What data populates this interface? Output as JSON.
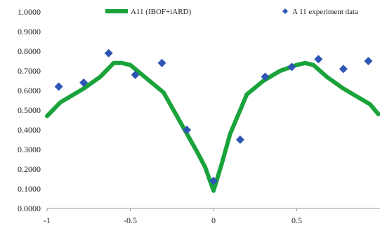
{
  "chart_data": {
    "type": "line",
    "xlim": [
      -1,
      1
    ],
    "ylim": [
      0,
      1
    ],
    "x_ticks": [
      "-1",
      "-0.5",
      "0",
      "0.5"
    ],
    "x_tick_values": [
      -1,
      -0.5,
      0,
      0.5
    ],
    "y_ticks": [
      "0.0000",
      "0.1000",
      "0.2000",
      "0.3000",
      "0.4000",
      "0.5000",
      "0.6000",
      "0.7000",
      "0.8000",
      "0.9000",
      "1.0000"
    ],
    "y_tick_values": [
      0,
      0.1,
      0.2,
      0.3,
      0.4,
      0.5,
      0.6,
      0.7,
      0.8,
      0.9,
      1.0
    ],
    "grid": false,
    "legend_position": "top",
    "series": [
      {
        "name": "A11 (IBOF+iARD)",
        "type": "line",
        "color": "#1aa33a",
        "x": [
          -1.0,
          -0.92,
          -0.78,
          -0.68,
          -0.6,
          -0.55,
          -0.5,
          -0.4,
          -0.3,
          -0.2,
          -0.1,
          -0.05,
          0.0,
          0.05,
          0.1,
          0.2,
          0.3,
          0.4,
          0.5,
          0.55,
          0.6,
          0.68,
          0.78,
          0.88,
          0.94,
          0.99
        ],
        "values": [
          0.47,
          0.54,
          0.61,
          0.67,
          0.74,
          0.74,
          0.73,
          0.66,
          0.59,
          0.44,
          0.29,
          0.21,
          0.09,
          0.23,
          0.38,
          0.58,
          0.65,
          0.7,
          0.73,
          0.74,
          0.73,
          0.67,
          0.61,
          0.56,
          0.53,
          0.48
        ]
      },
      {
        "name": "A 11 experiment data",
        "type": "scatter",
        "color": "#2f56b4",
        "x": [
          -0.93,
          -0.78,
          -0.63,
          -0.47,
          -0.31,
          -0.16,
          0.0,
          0.16,
          0.31,
          0.47,
          0.63,
          0.78,
          0.93
        ],
        "values": [
          0.62,
          0.64,
          0.79,
          0.68,
          0.74,
          0.4,
          0.14,
          0.35,
          0.67,
          0.72,
          0.76,
          0.71,
          0.75
        ]
      }
    ]
  }
}
